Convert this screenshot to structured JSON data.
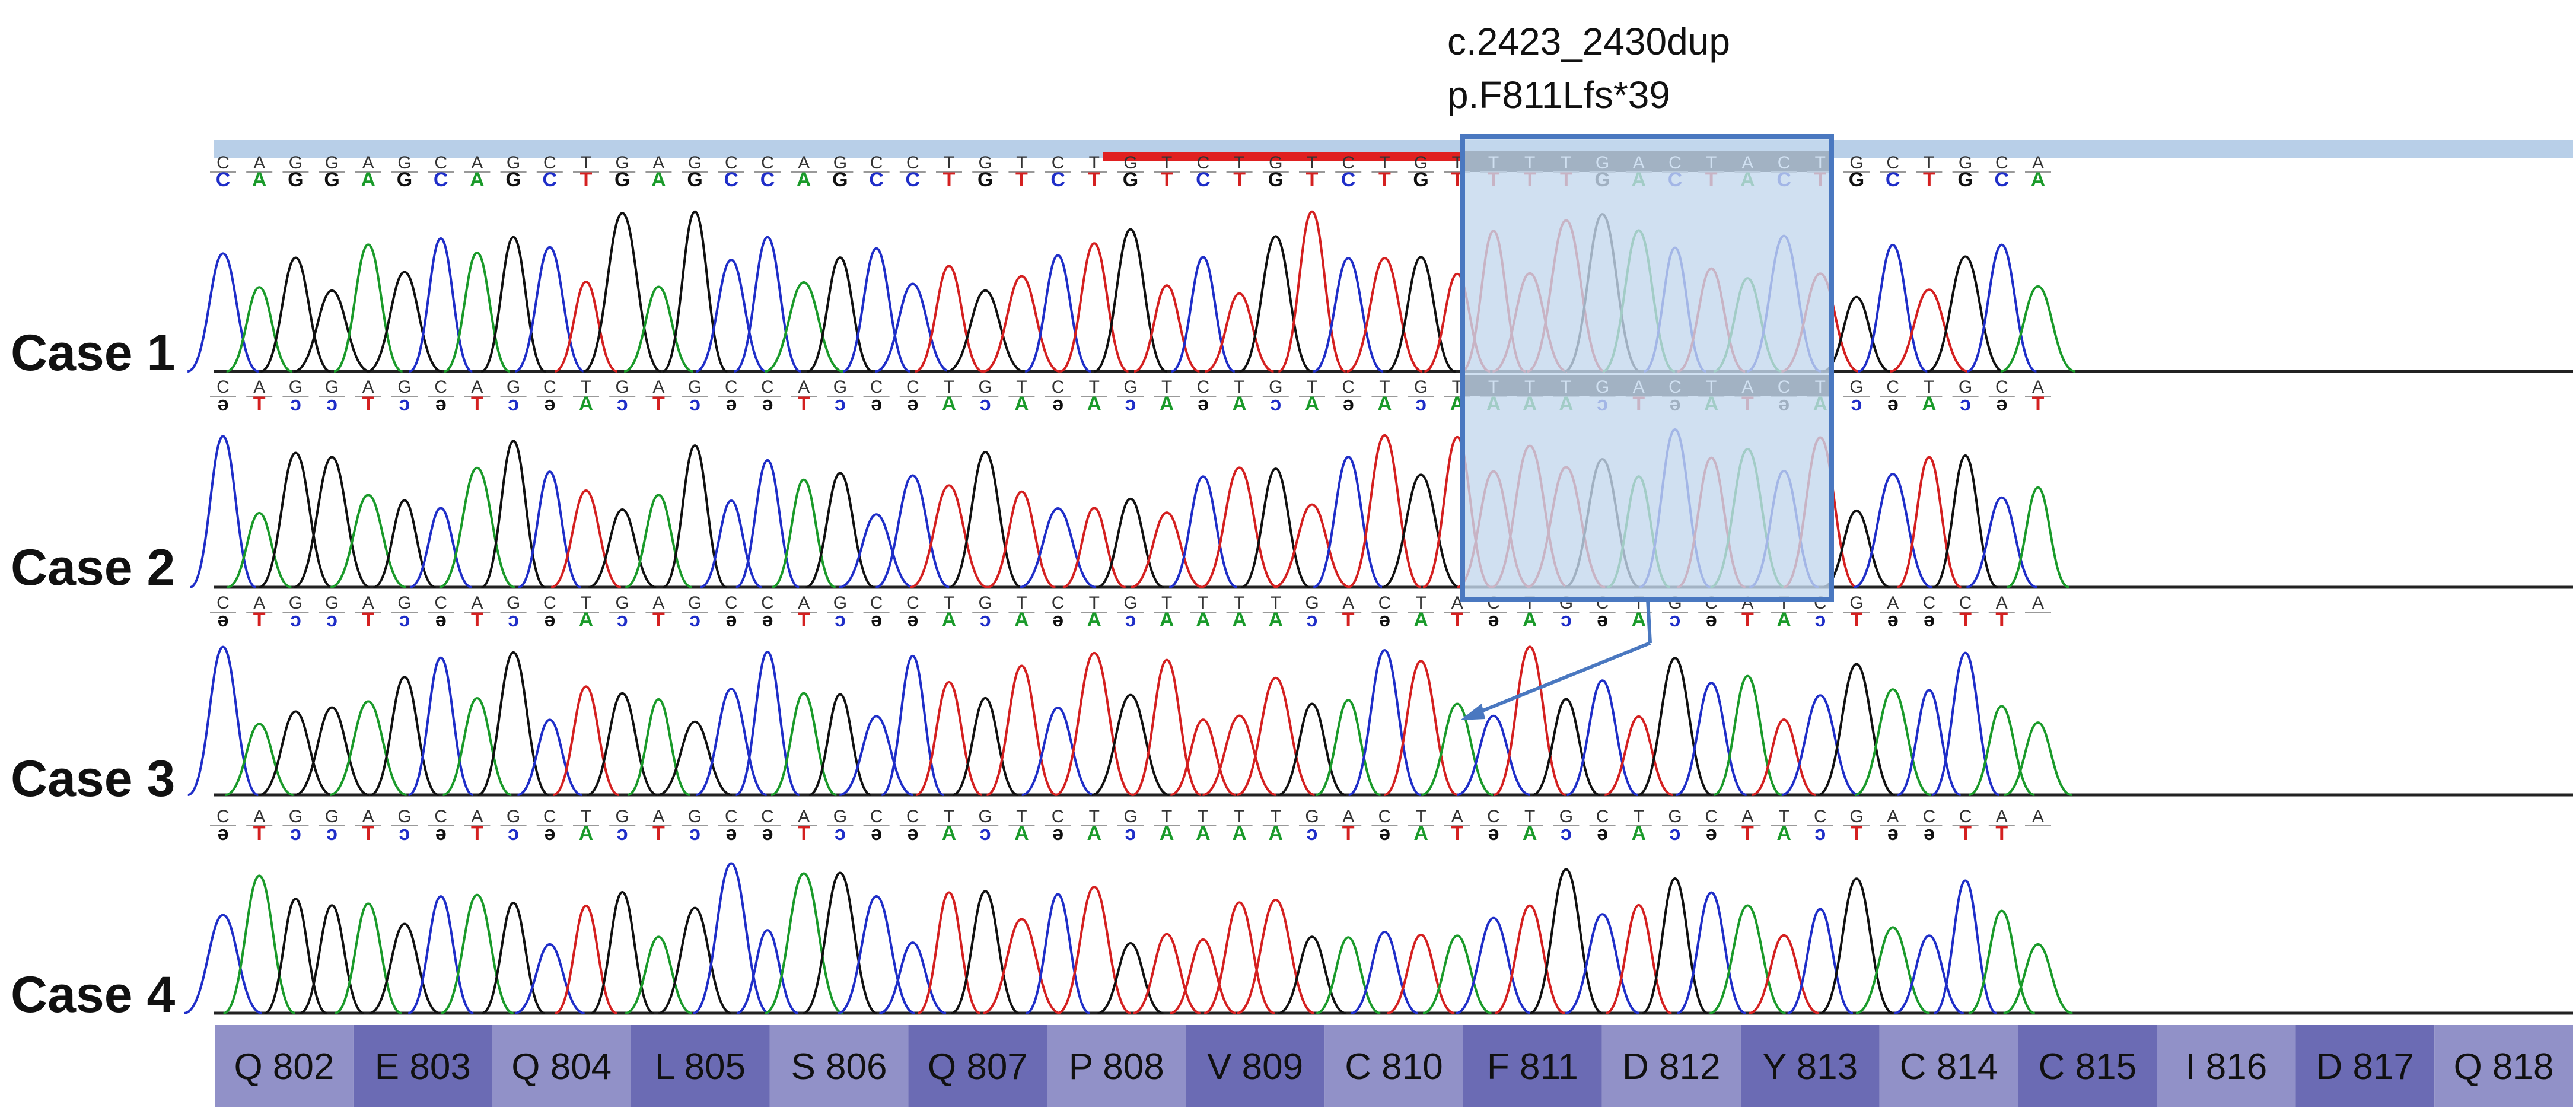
{
  "annotation": {
    "cdna": "c.2423_2430dup",
    "protein": "p.F811Lfs*39"
  },
  "colors": {
    "A": "#1a9a2a",
    "C": "#1f2ec8",
    "G": "#111111",
    "T": "#d42020",
    "highlight": "#c4d8ee",
    "box": "#4a78c0",
    "arrow": "#4a78c0",
    "dup_bar": "#e02020",
    "top_bar": "#b8cfe8",
    "codon_a": "#9191c8",
    "codon_b": "#6b6bb4",
    "codon_text": "#111111"
  },
  "cases": [
    {
      "label": "Case 1",
      "ref": "CAGGAGCAGCTGAGCCAGCCTGTCTGTCTGTCTGTTTTGACTACTGCTGCA",
      "call": "CAGGAGCAGCTGAGCCAGCCTGTCTGTCTGTCTGTTTTGACTACTGCTGCA",
      "boxed": "CTGTCTGT"
    },
    {
      "label": "Case 2",
      "ref": "CAGGAGCAGCTGAGCCAGCCTGTCTGTCTGTCTGTTTTGACTACTGCTGCA",
      "call": "əTɔɔTɔəTɔəAɔTɔəəTɔəəAɔAəAɔAəAɔAəAɔAAAAɔTəATəAɔəAɔəT",
      "boxed": "CTGTCTGT"
    },
    {
      "label": "Case 3",
      "ref": "CAGGAGCAGCTGAGCCAGCCTGTCTGTTTTGACTACTGCTGCATCGACCAA",
      "call": "əTɔɔTɔəTɔəAɔTɔəəTɔəəAɔAəAɔAAAAɔTəATəAɔəAɔəTAɔTəəTT"
    },
    {
      "label": "Case 4",
      "ref": "CAGGAGCAGCTGAGCCAGCCTGTCTGTTTTGACTACTGCTGCATCGACCAA",
      "call": "əTɔɔTɔəTɔəAɔTɔəəTɔəəAɔAəAɔAAAAɔTəATəAɔəAɔəTAɔTəəTT"
    }
  ],
  "codons": [
    "Q 802",
    "E 803",
    "Q 804",
    "L 805",
    "S 806",
    "Q 807",
    "P 808",
    "V 809",
    "C 810",
    "F 811",
    "D 812",
    "Y 813",
    "C 814",
    "C 815",
    "I 816",
    "D 817",
    "Q 818"
  ],
  "trace_peaks": [
    "CAGGAGCAGCTGAGCCAGCCTGTCTGTCTGTCTGTTTTGACTACTGCTGCA",
    "CAGGAGCAGCTGAGCCAGCCTGTCTGTCTGTCTGTTTTGACTACTGCTGCA",
    "CAGGAGCAGCTGAGCCAGCCTGTCTGTTTTGACTACTGCTGCATCGACCAA",
    "CAGGAGCAGCTGAGCCAGCCTGTCTGTTTTGACTACTGCTGCATCGACCAA"
  ]
}
